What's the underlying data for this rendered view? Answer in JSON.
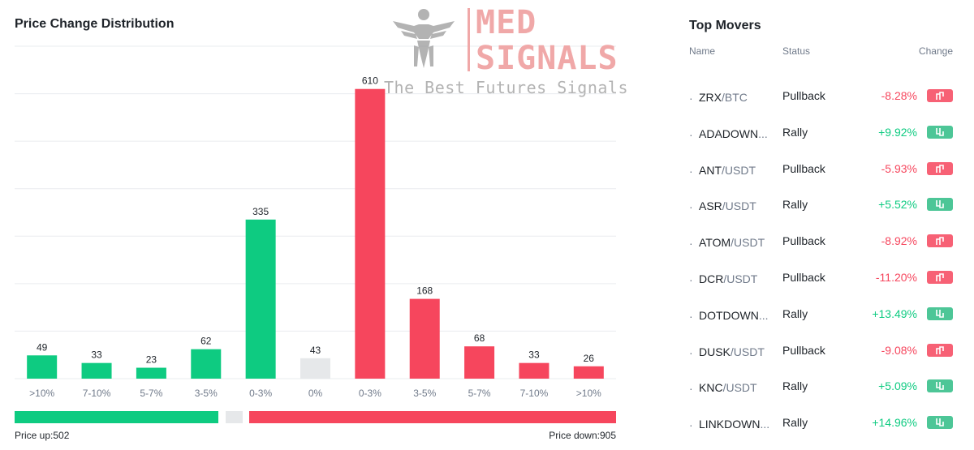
{
  "chart_data": {
    "type": "bar",
    "title": "Price Change Distribution",
    "categories": [
      ">10%",
      "7-10%",
      "5-7%",
      "3-5%",
      "0-3%",
      "0%",
      "0-3%",
      "3-5%",
      "5-7%",
      "7-10%",
      ">10%"
    ],
    "values": [
      49,
      33,
      23,
      62,
      335,
      43,
      610,
      168,
      68,
      33,
      26
    ],
    "bar_groups": [
      "up",
      "up",
      "up",
      "up",
      "up",
      "flat",
      "down",
      "down",
      "down",
      "down",
      "down"
    ],
    "ylim": [
      0,
      700
    ],
    "grid": true,
    "colors": {
      "up": "#0ecb81",
      "flat": "#e6e8ea",
      "down": "#f6465d"
    }
  },
  "summary": {
    "price_up_label": "Price up:502",
    "price_down_label": "Price down:905",
    "up_count": 502,
    "flat_count": 43,
    "down_count": 905
  },
  "watermark": {
    "brand_line1": "MED",
    "brand_line2": "SIGNALS",
    "tagline": "The Best Futures Signals"
  },
  "top_movers": {
    "title": "Top Movers",
    "headers": {
      "name": "Name",
      "status": "Status",
      "change": "Change"
    },
    "rows": [
      {
        "base": "ZRX",
        "quote": "/BTC",
        "status": "Pullback",
        "change": "-8.28%",
        "dir": "down"
      },
      {
        "base": "ADADOWN",
        "quote": "...",
        "status": "Rally",
        "change": "+9.92%",
        "dir": "up"
      },
      {
        "base": "ANT",
        "quote": "/USDT",
        "status": "Pullback",
        "change": "-5.93%",
        "dir": "down"
      },
      {
        "base": "ASR",
        "quote": "/USDT",
        "status": "Rally",
        "change": "+5.52%",
        "dir": "up"
      },
      {
        "base": "ATOM",
        "quote": "/USDT",
        "status": "Pullback",
        "change": "-8.92%",
        "dir": "down"
      },
      {
        "base": "DCR",
        "quote": "/USDT",
        "status": "Pullback",
        "change": "-11.20%",
        "dir": "down"
      },
      {
        "base": "DOTDOWN",
        "quote": "...",
        "status": "Rally",
        "change": "+13.49%",
        "dir": "up"
      },
      {
        "base": "DUSK",
        "quote": "/USDT",
        "status": "Pullback",
        "change": "-9.08%",
        "dir": "down"
      },
      {
        "base": "KNC",
        "quote": "/USDT",
        "status": "Rally",
        "change": "+5.09%",
        "dir": "up"
      },
      {
        "base": "LINKDOWN",
        "quote": "...",
        "status": "Rally",
        "change": "+14.96%",
        "dir": "up"
      }
    ]
  }
}
